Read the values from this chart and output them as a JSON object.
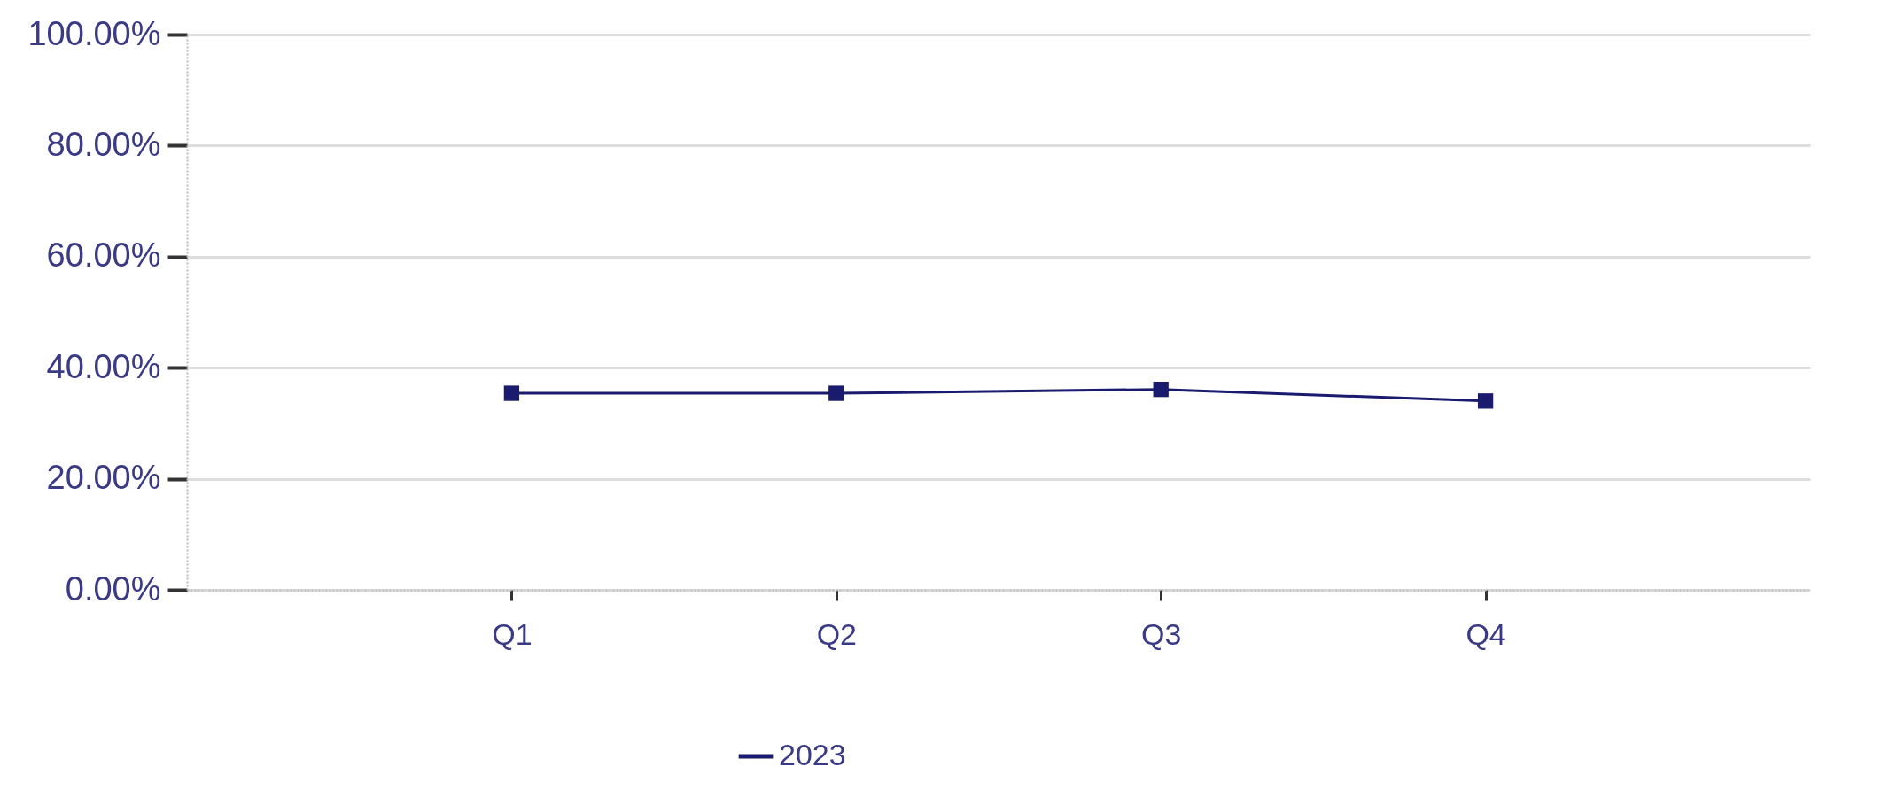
{
  "chart_data": {
    "type": "line",
    "categories": [
      "Q1",
      "Q2",
      "Q3",
      "Q4"
    ],
    "series": [
      {
        "name": "2023",
        "color": "#1a1a6e",
        "values": [
          35.4,
          35.4,
          36.1,
          34.0
        ]
      }
    ],
    "ylim": [
      0,
      100
    ],
    "yticks": [
      {
        "value": 0,
        "label": "0.00%"
      },
      {
        "value": 20,
        "label": "20.00%"
      },
      {
        "value": 40,
        "label": "40.00%"
      },
      {
        "value": 60,
        "label": "60.00%"
      },
      {
        "value": 80,
        "label": "80.00%"
      },
      {
        "value": 100,
        "label": "100.00%"
      }
    ],
    "grid": "y",
    "legend": "bottom",
    "marker": "square",
    "line_style": "solid"
  }
}
